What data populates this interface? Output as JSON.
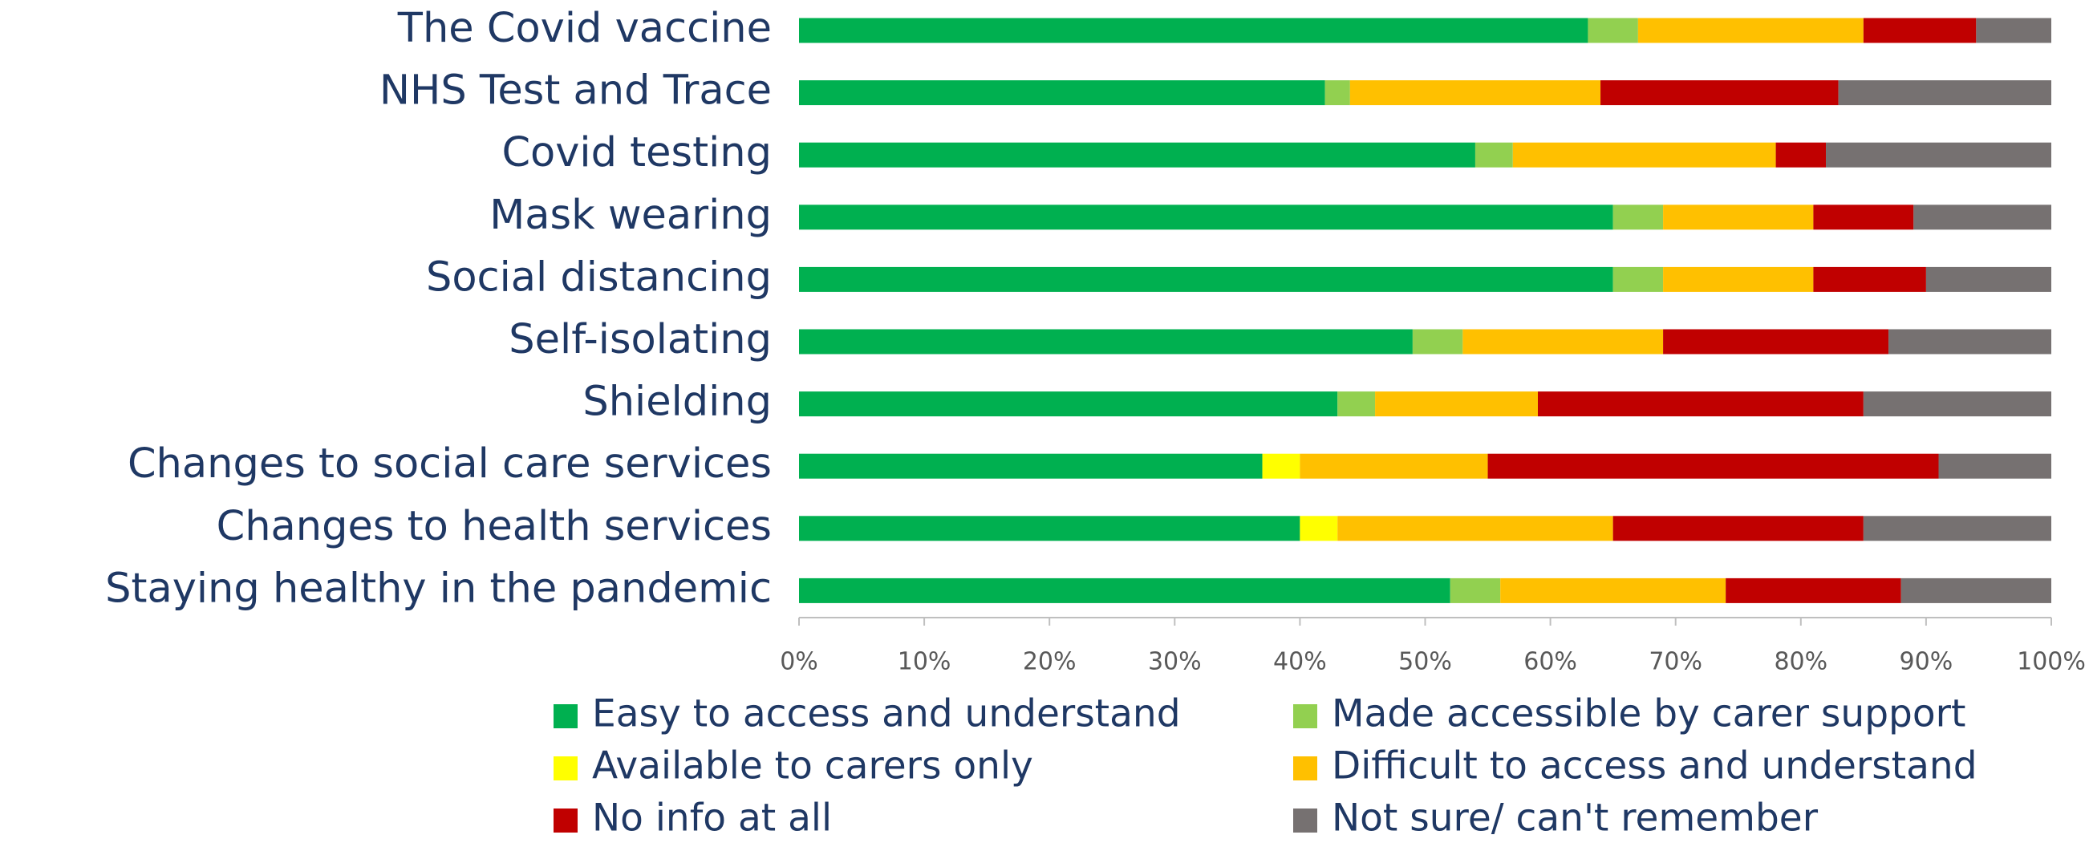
{
  "chart_data": {
    "type": "stacked-barh",
    "categories": [
      "The Covid vaccine",
      "NHS Test and Trace",
      "Covid testing",
      "Mask wearing",
      "Social distancing",
      "Self-isolating",
      "Shielding",
      "Changes to social care services",
      "Changes to health services",
      "Staying healthy in the pandemic"
    ],
    "series": [
      {
        "name": "Easy to access and understand",
        "color": "#00b050",
        "values": [
          63,
          42,
          54,
          65,
          65,
          49,
          43,
          37,
          40,
          52
        ]
      },
      {
        "name": "Made accessible by carer support",
        "color": "#92d050",
        "values": [
          4,
          2,
          3,
          4,
          4,
          4,
          3,
          0,
          0,
          4
        ]
      },
      {
        "name": "Available to carers only",
        "color": "#ffff00",
        "values": [
          0,
          0,
          0,
          0,
          0,
          0,
          0,
          3,
          3,
          0
        ]
      },
      {
        "name": "Difficult to access and understand",
        "color": "#ffc000",
        "values": [
          18,
          20,
          21,
          12,
          12,
          16,
          13,
          15,
          22,
          18
        ]
      },
      {
        "name": "No info at all",
        "color": "#c00000",
        "values": [
          9,
          19,
          4,
          8,
          9,
          18,
          26,
          36,
          20,
          14
        ]
      },
      {
        "name": "Not sure/ can't remember",
        "color": "#767171",
        "values": [
          6,
          17,
          18,
          11,
          10,
          13,
          15,
          9,
          15,
          12
        ]
      }
    ],
    "xlim": [
      0,
      100
    ],
    "xticks": [
      {
        "value": 0,
        "label": "0%"
      },
      {
        "value": 10,
        "label": "10%"
      },
      {
        "value": 20,
        "label": "20%"
      },
      {
        "value": 30,
        "label": "30%"
      },
      {
        "value": 40,
        "label": "40%"
      },
      {
        "value": 50,
        "label": "50%"
      },
      {
        "value": 60,
        "label": "60%"
      },
      {
        "value": 70,
        "label": "70%"
      },
      {
        "value": 80,
        "label": "80%"
      },
      {
        "value": 90,
        "label": "90%"
      },
      {
        "value": 100,
        "label": "100%"
      }
    ],
    "legend": "bottom"
  }
}
